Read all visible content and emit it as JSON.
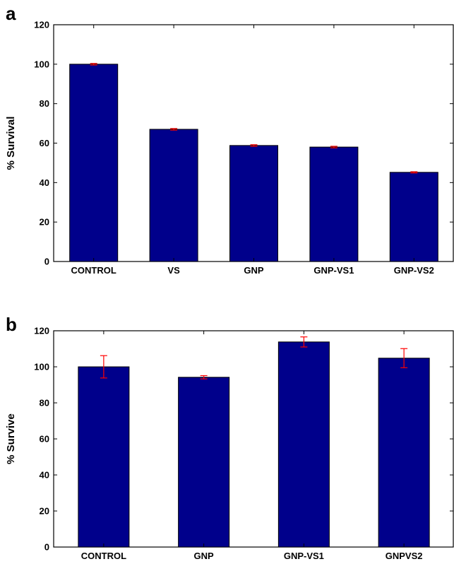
{
  "chart_data": [
    {
      "panel": "a",
      "type": "bar",
      "categories": [
        "CONTROL",
        "VS",
        "GNP",
        "GNP-VS1",
        "GNP-VS2"
      ],
      "values": [
        100,
        67,
        58.8,
        58,
        45.2
      ],
      "errors": [
        0.4,
        0.4,
        0.4,
        0.4,
        0.3
      ],
      "ylabel": "% Survival",
      "ylim": [
        0,
        120
      ],
      "yticks": [
        0,
        20,
        40,
        60,
        80,
        100,
        120
      ],
      "bar_color": "#00008b",
      "error_color": "#ff0000",
      "grid": false
    },
    {
      "panel": "b",
      "type": "bar",
      "categories": [
        "CONTROL",
        "GNP",
        "GNP-VS1",
        "GNPVS2"
      ],
      "values": [
        100,
        94.2,
        113.8,
        104.8
      ],
      "errors": [
        6.2,
        0.9,
        2.8,
        5.3
      ],
      "ylabel": "% Survive",
      "ylim": [
        0,
        120
      ],
      "yticks": [
        0,
        20,
        40,
        60,
        80,
        100,
        120
      ],
      "bar_color": "#00008b",
      "error_color": "#ff0000",
      "grid": false
    }
  ]
}
